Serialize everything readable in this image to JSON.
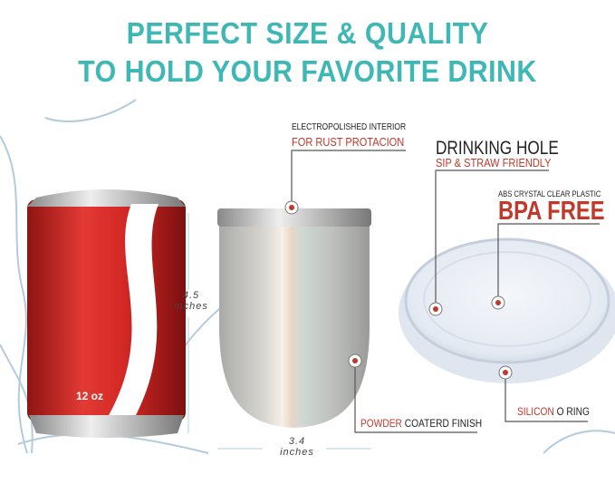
{
  "headline": {
    "line1": "PERFECT SIZE & QUALITY",
    "line2": "TO HOLD YOUR FAVORITE DRINK"
  },
  "can": {
    "label": "12 oz",
    "color": "#d62a27"
  },
  "dimensions": {
    "height_value": "4.5",
    "height_unit": "inches",
    "width_value": "3.4",
    "width_unit": "inches"
  },
  "callouts": {
    "interior": {
      "top": "ELECTROPOLISHED INTERIOR",
      "bottom": "FOR RUST PROTACION"
    },
    "drinking_hole": {
      "top": "DRINKING HOLE",
      "bottom": "SIP & STRAW FRIENDLY"
    },
    "bpa": {
      "top": "ABS CRYSTAL CLEAR PLASTIC",
      "bottom": "BPA FREE"
    },
    "finish": {
      "highlight": "POWDER",
      "rest": "COATERD FINISH"
    },
    "ring": {
      "highlight": "SILICON",
      "rest": "O RING"
    }
  },
  "colors": {
    "title": "#3fb8b5",
    "accent": "#c0392b",
    "text": "#222222"
  }
}
